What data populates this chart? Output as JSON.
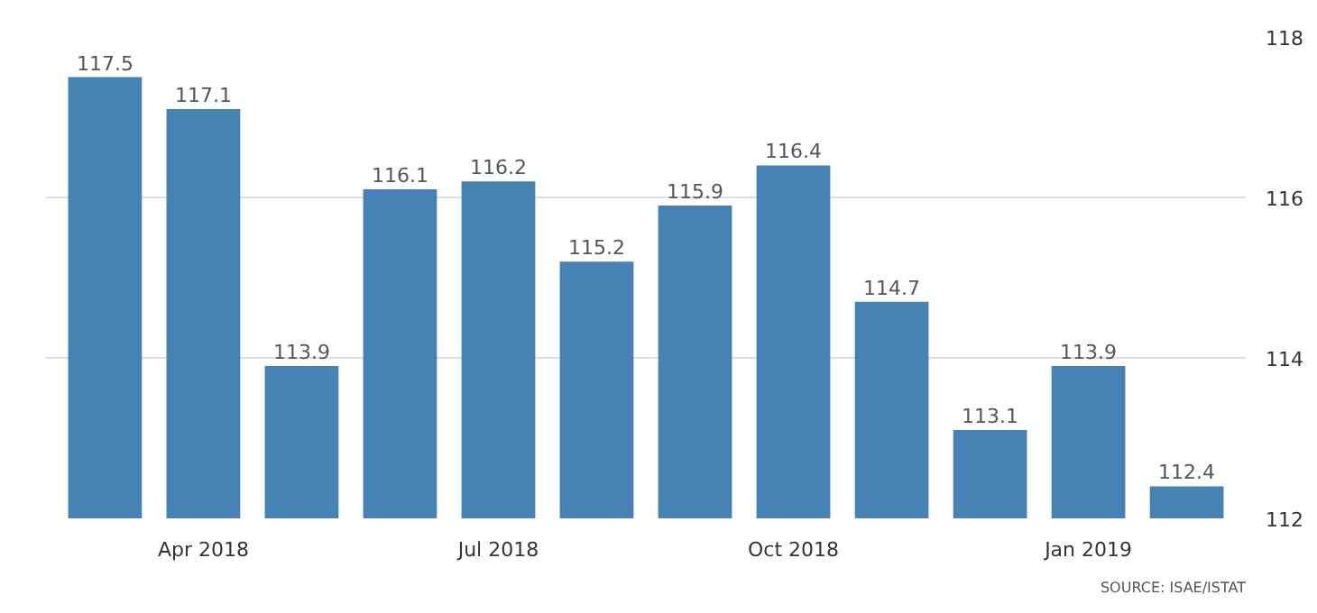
{
  "chart_data": {
    "type": "bar",
    "categories": [
      null,
      "Apr 2018",
      null,
      null,
      "Jul 2018",
      null,
      null,
      "Oct 2018",
      null,
      null,
      "Jan 2019",
      null
    ],
    "values": [
      117.5,
      117.1,
      113.9,
      116.1,
      116.2,
      115.2,
      115.9,
      116.4,
      114.7,
      113.1,
      113.9,
      112.4
    ],
    "color": "#4682b4",
    "ylim": [
      112,
      118
    ],
    "yticks": [
      112,
      114,
      116,
      118
    ],
    "grid": "y",
    "data_labels": true,
    "annotations": [
      "SOURCE: ISAE/ISTAT"
    ]
  }
}
